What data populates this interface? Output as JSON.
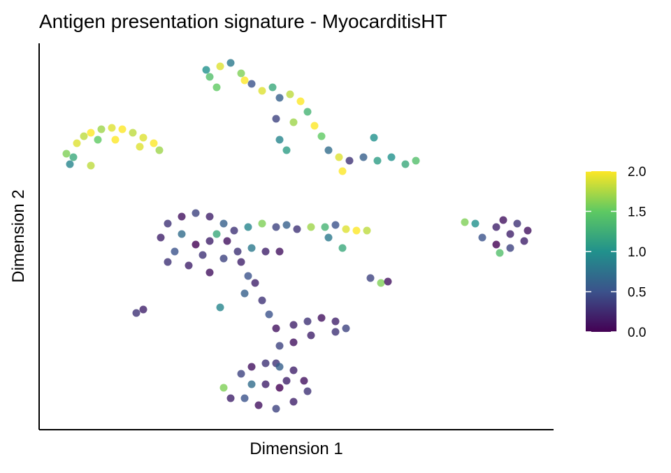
{
  "chart_data": {
    "type": "scatter",
    "title": "Antigen presentation signature - MyocarditisHT",
    "x_label": "Dimension 1",
    "y_label": "Dimension 2",
    "xlim": [
      0,
      736
    ],
    "ylim": [
      0,
      553
    ],
    "colormap": "viridis",
    "x": [
      39,
      44,
      54,
      64,
      74,
      89,
      104,
      119,
      134,
      149,
      164,
      172,
      84,
      109,
      144,
      49,
      74,
      239,
      244,
      259,
      274,
      289,
      304,
      319,
      334,
      344,
      359,
      374,
      384,
      339,
      364,
      394,
      344,
      354,
      404,
      414,
      429,
      434,
      444,
      464,
      484,
      504,
      524,
      539,
      479,
      254,
      294,
      174,
      184,
      204,
      224,
      244,
      264,
      279,
      194,
      214,
      244,
      264,
      284,
      304,
      324,
      344,
      224,
      244,
      204,
      254,
      234,
      289,
      184,
      269,
      299,
      299,
      319,
      339,
      354,
      369,
      389,
      409,
      424,
      439,
      454,
      469,
      414,
      434,
      609,
      624,
      634,
      654,
      664,
      684,
      699,
      694,
      674,
      654,
      674,
      659,
      139,
      149,
      474,
      489,
      499,
      294,
      309,
      319,
      329,
      339,
      344,
      339,
      259,
      364,
      384,
      404,
      424,
      439,
      424,
      389,
      364,
      264,
      274,
      289,
      304,
      324,
      344,
      364,
      379,
      384,
      364,
      339,
      314,
      294,
      324,
      344,
      304,
      354
    ],
    "y": [
      395,
      380,
      410,
      420,
      425,
      430,
      432,
      430,
      425,
      418,
      410,
      400,
      415,
      415,
      405,
      390,
      378,
      515,
      505,
      520,
      525,
      510,
      495,
      485,
      490,
      475,
      480,
      470,
      455,
      445,
      440,
      435,
      415,
      400,
      420,
      400,
      390,
      370,
      385,
      390,
      385,
      390,
      380,
      385,
      418,
      490,
      500,
      275,
      295,
      305,
      310,
      305,
      295,
      285,
      255,
      235,
      225,
      245,
      255,
      260,
      255,
      255,
      265,
      270,
      280,
      280,
      250,
      240,
      240,
      270,
      220,
      290,
      295,
      290,
      293,
      287,
      290,
      290,
      293,
      287,
      285,
      285,
      275,
      260,
      297,
      295,
      275,
      290,
      300,
      295,
      285,
      270,
      260,
      265,
      280,
      253,
      167,
      172,
      217,
      210,
      212,
      195,
      210,
      185,
      165,
      145,
      120,
      95,
      175,
      150,
      155,
      160,
      155,
      145,
      140,
      135,
      125,
      60,
      45,
      80,
      90,
      95,
      90,
      85,
      70,
      55,
      40,
      30,
      35,
      45,
      65,
      60,
      65,
      70
    ],
    "values": [
      1.6,
      0.9,
      1.9,
      1.8,
      2.0,
      1.7,
      1.9,
      2.0,
      1.8,
      1.9,
      2.0,
      1.7,
      1.5,
      2.0,
      1.9,
      1.2,
      1.8,
      1.0,
      1.4,
      1.9,
      0.8,
      1.6,
      0.5,
      1.9,
      1.2,
      0.6,
      1.8,
      2.0,
      1.3,
      0.4,
      1.7,
      2.0,
      0.9,
      1.1,
      1.5,
      0.7,
      1.9,
      2.0,
      0.3,
      0.6,
      1.1,
      1.0,
      1.2,
      1.4,
      1.0,
      1.5,
      2.0,
      0.2,
      0.3,
      0.1,
      0.4,
      0.2,
      0.6,
      0.3,
      0.5,
      0.2,
      0.1,
      0.4,
      0.3,
      0.8,
      0.2,
      0.1,
      0.0,
      0.2,
      0.7,
      1.2,
      0.3,
      0.2,
      0.3,
      0.1,
      0.5,
      0.9,
      1.6,
      0.4,
      0.6,
      0.3,
      1.7,
      1.3,
      0.5,
      1.9,
      2.0,
      1.8,
      0.8,
      1.2,
      1.6,
      1.0,
      0.5,
      0.2,
      0.1,
      0.3,
      0.1,
      0.2,
      0.4,
      0.0,
      0.2,
      1.4,
      0.3,
      0.2,
      0.4,
      1.6,
      0.1,
      0.6,
      0.2,
      0.3,
      0.5,
      0.1,
      0.4,
      0.3,
      0.9,
      0.2,
      0.3,
      0.1,
      0.2,
      0.4,
      0.3,
      0.2,
      0.1,
      1.6,
      0.2,
      0.4,
      0.1,
      0.3,
      0.6,
      0.2,
      0.1,
      0.3,
      0.2,
      0.4,
      0.1,
      0.5,
      0.2,
      0.0,
      0.7,
      0.2
    ],
    "colorbar": {
      "lim": [
        0,
        2
      ],
      "ticks": [
        {
          "value": 0,
          "label": "0.0"
        },
        {
          "value": 0.5,
          "label": "0.5"
        },
        {
          "value": 1,
          "label": "1.0"
        },
        {
          "value": 1.5,
          "label": "1.5"
        },
        {
          "value": 2,
          "label": "2.0"
        }
      ]
    }
  }
}
